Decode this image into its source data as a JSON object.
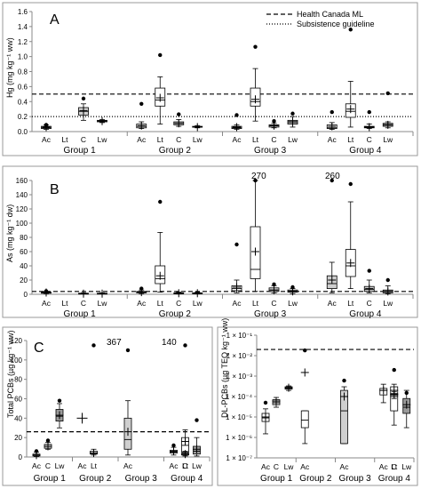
{
  "chart_data": [
    {
      "panel": "A",
      "type": "boxplot",
      "ylabel": "Hg (mg kg⁻¹ ww)",
      "ylim": [
        0,
        1.6
      ],
      "yticks": [
        "0.0",
        "0.2",
        "0.4",
        "0.6",
        "0.8",
        "1.0",
        "1.2",
        "1.4",
        "1.6"
      ],
      "legend": [
        {
          "name": "Health Canada ML",
          "style": "dashed"
        },
        {
          "name": "Subsistence guideline",
          "style": "dotted"
        }
      ],
      "legend_position": "top-right",
      "reference_lines": [
        {
          "name": "Health Canada ML",
          "y": 0.5,
          "style": "dashed"
        },
        {
          "name": "Subsistence guideline",
          "y": 0.2,
          "style": "dotted"
        }
      ],
      "group_labels": [
        "Group 1",
        "Group 2",
        "Group 3",
        "Group 4"
      ],
      "boxes": [
        {
          "group": 0,
          "cat": "Ac",
          "min": 0.03,
          "q1": 0.04,
          "median": 0.05,
          "q3": 0.07,
          "max": 0.09,
          "mean": 0.06,
          "outliers": [
            0.09
          ],
          "fill": "#ffffff"
        },
        {
          "group": 0,
          "cat": "Lt",
          "empty": true
        },
        {
          "group": 0,
          "cat": "C",
          "min": 0.15,
          "q1": 0.22,
          "median": 0.27,
          "q3": 0.32,
          "max": 0.37,
          "mean": 0.28,
          "outliers": [
            0.44
          ],
          "fill": "#cfcfcf"
        },
        {
          "group": 0,
          "cat": "Lw",
          "min": 0.12,
          "q1": 0.13,
          "median": 0.14,
          "q3": 0.15,
          "max": 0.16,
          "mean": 0.14,
          "outliers": [],
          "fill": "#9a9a9a"
        },
        {
          "group": 1,
          "cat": "Ac",
          "min": 0.04,
          "q1": 0.05,
          "median": 0.07,
          "q3": 0.1,
          "max": 0.13,
          "mean": 0.08,
          "outliers": [
            0.37
          ],
          "fill": "#ffffff"
        },
        {
          "group": 1,
          "cat": "Lt",
          "min": 0.1,
          "q1": 0.34,
          "median": 0.42,
          "q3": 0.58,
          "max": 0.73,
          "mean": 0.45,
          "outliers": [
            1.02
          ],
          "fill": "#ffffff"
        },
        {
          "group": 1,
          "cat": "C",
          "min": 0.07,
          "q1": 0.09,
          "median": 0.11,
          "q3": 0.13,
          "max": 0.16,
          "mean": 0.11,
          "outliers": [
            0.23
          ],
          "fill": "#cfcfcf"
        },
        {
          "group": 1,
          "cat": "Lw",
          "min": 0.05,
          "q1": 0.06,
          "median": 0.06,
          "q3": 0.07,
          "max": 0.08,
          "mean": 0.06,
          "outliers": [],
          "fill": "#9a9a9a"
        },
        {
          "group": 2,
          "cat": "Ac",
          "min": 0.03,
          "q1": 0.04,
          "median": 0.05,
          "q3": 0.07,
          "max": 0.09,
          "mean": 0.06,
          "outliers": [
            0.22
          ],
          "fill": "#ffffff"
        },
        {
          "group": 2,
          "cat": "Lt",
          "min": 0.14,
          "q1": 0.34,
          "median": 0.4,
          "q3": 0.58,
          "max": 0.84,
          "mean": 0.43,
          "outliers": [
            1.13
          ],
          "fill": "#ffffff"
        },
        {
          "group": 2,
          "cat": "C",
          "min": 0.05,
          "q1": 0.06,
          "median": 0.08,
          "q3": 0.09,
          "max": 0.11,
          "mean": 0.08,
          "outliers": [
            0.14
          ],
          "fill": "#cfcfcf"
        },
        {
          "group": 2,
          "cat": "Lw",
          "min": 0.06,
          "q1": 0.1,
          "median": 0.13,
          "q3": 0.15,
          "max": 0.2,
          "mean": 0.13,
          "outliers": [
            0.24
          ],
          "fill": "#9a9a9a"
        },
        {
          "group": 3,
          "cat": "Ac",
          "min": 0.03,
          "q1": 0.04,
          "median": 0.05,
          "q3": 0.09,
          "max": 0.12,
          "mean": 0.07,
          "outliers": [
            0.26
          ],
          "fill": "#ffffff"
        },
        {
          "group": 3,
          "cat": "Lt",
          "min": 0.06,
          "q1": 0.19,
          "median": 0.27,
          "q3": 0.37,
          "max": 0.67,
          "mean": 0.3,
          "outliers": [
            1.36
          ],
          "fill": "#ffffff"
        },
        {
          "group": 3,
          "cat": "C",
          "min": 0.04,
          "q1": 0.05,
          "median": 0.06,
          "q3": 0.07,
          "max": 0.1,
          "mean": 0.06,
          "outliers": [
            0.26
          ],
          "fill": "#cfcfcf"
        },
        {
          "group": 3,
          "cat": "Lw",
          "min": 0.05,
          "q1": 0.07,
          "median": 0.09,
          "q3": 0.11,
          "max": 0.13,
          "mean": 0.09,
          "outliers": [
            0.51
          ],
          "fill": "#9a9a9a"
        }
      ]
    },
    {
      "panel": "B",
      "type": "boxplot",
      "ylabel": "As (mg kg⁻¹ dw)",
      "ylim": [
        0,
        160
      ],
      "yticks": [
        "0",
        "20",
        "40",
        "60",
        "80",
        "100",
        "120",
        "140",
        "160"
      ],
      "reference_lines": [
        {
          "y": 4,
          "style": "dashed"
        }
      ],
      "group_labels": [
        "Group 1",
        "Group 2",
        "Group 3",
        "Group 4"
      ],
      "annotations": [
        "270",
        "260"
      ],
      "boxes": [
        {
          "group": 0,
          "cat": "Ac",
          "min": 1,
          "q1": 1.5,
          "median": 2,
          "q3": 3,
          "max": 4,
          "mean": 2.5,
          "outliers": [
            4.5
          ],
          "fill": "#ffffff"
        },
        {
          "group": 0,
          "cat": "Lt",
          "empty": true
        },
        {
          "group": 0,
          "cat": "C",
          "min": 0.5,
          "q1": 0.8,
          "median": 1,
          "q3": 1.5,
          "max": 2,
          "mean": 1,
          "outliers": [],
          "fill": "#cfcfcf"
        },
        {
          "group": 0,
          "cat": "Lw",
          "min": 0.5,
          "q1": 0.8,
          "median": 1,
          "q3": 1.5,
          "max": 2,
          "mean": 1,
          "outliers": [],
          "fill": "#9a9a9a"
        },
        {
          "group": 1,
          "cat": "Ac",
          "min": 1,
          "q1": 2,
          "median": 3,
          "q3": 4,
          "max": 6,
          "mean": 3,
          "outliers": [
            8
          ],
          "fill": "#ffffff"
        },
        {
          "group": 1,
          "cat": "Lt",
          "min": 3,
          "q1": 15,
          "median": 22,
          "q3": 40,
          "max": 87,
          "mean": 26,
          "outliers": [
            130
          ],
          "fill": "#ffffff"
        },
        {
          "group": 1,
          "cat": "C",
          "min": 0.5,
          "q1": 1,
          "median": 1.5,
          "q3": 2,
          "max": 3,
          "mean": 1.5,
          "outliers": [],
          "fill": "#cfcfcf"
        },
        {
          "group": 1,
          "cat": "Lw",
          "min": 0.5,
          "q1": 1,
          "median": 1.5,
          "q3": 2,
          "max": 3,
          "mean": 1.5,
          "outliers": [],
          "fill": "#9a9a9a"
        },
        {
          "group": 2,
          "cat": "Ac",
          "min": 2,
          "q1": 5,
          "median": 8,
          "q3": 12,
          "max": 20,
          "mean": 10,
          "outliers": [
            70
          ],
          "fill": "#ffffff"
        },
        {
          "group": 2,
          "cat": "Lt",
          "min": 4,
          "q1": 22,
          "median": 35,
          "q3": 95,
          "max": 160,
          "mean": 60,
          "outliers": [
            165
          ],
          "fill": "#ffffff"
        },
        {
          "group": 2,
          "cat": "C",
          "min": 2,
          "q1": 4,
          "median": 6,
          "q3": 9,
          "max": 12,
          "mean": 6,
          "outliers": [
            14
          ],
          "fill": "#cfcfcf"
        },
        {
          "group": 2,
          "cat": "Lw",
          "min": 1,
          "q1": 3,
          "median": 4,
          "q3": 6,
          "max": 8,
          "mean": 4,
          "outliers": [
            10
          ],
          "fill": "#9a9a9a"
        },
        {
          "group": 3,
          "cat": "Ac",
          "min": 2,
          "q1": 8,
          "median": 15,
          "q3": 26,
          "max": 45,
          "mean": 20,
          "outliers": [
            162
          ],
          "fill": "#cfcfcf"
        },
        {
          "group": 3,
          "cat": "Lt",
          "min": 8,
          "q1": 25,
          "median": 40,
          "q3": 63,
          "max": 130,
          "mean": 44,
          "outliers": [
            155
          ],
          "fill": "#ffffff"
        },
        {
          "group": 3,
          "cat": "C",
          "min": 2,
          "q1": 4,
          "median": 7,
          "q3": 11,
          "max": 20,
          "mean": 8,
          "outliers": [
            33
          ],
          "fill": "#cfcfcf"
        },
        {
          "group": 3,
          "cat": "Lw",
          "min": 1,
          "q1": 2,
          "median": 4,
          "q3": 6,
          "max": 12,
          "mean": 4,
          "outliers": [
            20
          ],
          "fill": "#9a9a9a"
        }
      ]
    },
    {
      "panel": "C",
      "type": "boxplot",
      "ylabel": "Total PCBs (µg kg⁻¹ ww)",
      "ylim": [
        0,
        120
      ],
      "yticks": [
        "0",
        "20",
        "40",
        "60",
        "80",
        "100",
        "120"
      ],
      "reference_lines": [
        {
          "y": 26,
          "style": "dashed"
        }
      ],
      "group_labels": [
        "Group 1",
        "Group 2",
        "Group 3",
        "Group 4"
      ],
      "annotations": [
        "367",
        "140"
      ],
      "boxes": [
        {
          "group": 0,
          "cat": "Ac",
          "min": 0.5,
          "q1": 1,
          "median": 2,
          "q3": 3,
          "max": 5,
          "mean": 2,
          "outliers": [
            6
          ],
          "fill": "#ffffff"
        },
        {
          "group": 0,
          "cat": "C",
          "min": 8,
          "q1": 9,
          "median": 11,
          "q3": 13,
          "max": 15,
          "mean": 11,
          "outliers": [
            17
          ],
          "fill": "#cfcfcf"
        },
        {
          "group": 0,
          "cat": "Lw",
          "min": 30,
          "q1": 37,
          "median": 42,
          "q3": 49,
          "max": 55,
          "mean": 43,
          "outliers": [
            58
          ],
          "fill": "#9a9a9a"
        },
        {
          "group": 1,
          "cat": "Ac",
          "mean": 40,
          "outliers": [],
          "fill": "#ffffff",
          "mean_only": true
        },
        {
          "group": 1,
          "cat": "Lt",
          "min": 2,
          "q1": 3,
          "median": 4,
          "q3": 6,
          "max": 8,
          "mean": 4,
          "outliers": [
            115
          ],
          "fill": "#cfcfcf"
        },
        {
          "group": 2,
          "cat": "Ac",
          "min": 2,
          "q1": 8,
          "median": 18,
          "q3": 40,
          "max": 58,
          "mean": 26,
          "outliers": [
            110
          ],
          "fill": "#cfcfcf"
        },
        {
          "group": 3,
          "cat": "Ac",
          "min": 2,
          "q1": 4,
          "median": 5,
          "q3": 7,
          "max": 10,
          "mean": 6,
          "outliers": [
            12
          ],
          "fill": "#ffffff"
        },
        {
          "group": 3,
          "cat": "Lt",
          "min": 2,
          "q1": 5,
          "median": 12,
          "q3": 20,
          "max": 28,
          "mean": 16,
          "outliers": [
            115
          ],
          "fill": "#ffffff"
        },
        {
          "group": 3,
          "cat": "C",
          "min": 1,
          "q1": 2,
          "median": 3,
          "q3": 4,
          "max": 6,
          "mean": 3,
          "outliers": [],
          "fill": "#cfcfcf"
        },
        {
          "group": 3,
          "cat": "Lw",
          "min": 1,
          "q1": 3,
          "median": 6,
          "q3": 11,
          "max": 20,
          "mean": 8,
          "outliers": [
            38
          ],
          "fill": "#9a9a9a"
        }
      ]
    },
    {
      "panel": "D",
      "type": "boxplot",
      "scale": "log",
      "ylabel": "DL-PCBs (µg TEQ kg⁻¹ ww)",
      "ylim_exp": [
        -7,
        -1
      ],
      "yticks": [
        "1 × 10⁻⁷",
        "1 × 10⁻⁶",
        "1 × 10⁻⁵",
        "1 × 10⁻⁴",
        "1 × 10⁻³",
        "1 × 10⁻²",
        "1 × 10⁻¹"
      ],
      "reference_lines": [
        {
          "y": 0.02,
          "style": "dashed"
        }
      ],
      "group_labels": [
        "Group 1",
        "Group 2",
        "Group 3",
        "Group 4"
      ],
      "boxes": [
        {
          "group": 0,
          "cat": "Ac",
          "min": 1.5e-06,
          "q1": 6e-06,
          "median": 9e-06,
          "q3": 1.5e-05,
          "max": 2.5e-05,
          "mean": 1e-05,
          "outliers": [
            5e-05
          ],
          "fill": "#ffffff"
        },
        {
          "group": 0,
          "cat": "C",
          "min": 3e-05,
          "q1": 4e-05,
          "median": 5e-05,
          "q3": 7e-05,
          "max": 9e-05,
          "mean": 6e-05,
          "outliers": [],
          "fill": "#cfcfcf"
        },
        {
          "group": 0,
          "cat": "Lw",
          "min": 0.0002,
          "q1": 0.00023,
          "median": 0.00026,
          "q3": 0.0003,
          "max": 0.00033,
          "mean": 0.00027,
          "outliers": [],
          "fill": "#9a9a9a"
        },
        {
          "group": 1,
          "cat": "Ac",
          "min": 5e-07,
          "q1": 3e-06,
          "median": 7e-06,
          "q3": 2e-05,
          "max": 2e-05,
          "mean": 0.0015,
          "outliers": [
            0.018
          ],
          "fill": "#ffffff"
        },
        {
          "group": 2,
          "cat": "Ac",
          "min": 5e-07,
          "q1": 5e-07,
          "median": 2e-05,
          "q3": 0.0002,
          "max": 0.0003,
          "mean": 0.0001,
          "outliers": [
            0.0006
          ],
          "fill": "#cfcfcf"
        },
        {
          "group": 3,
          "cat": "Ac",
          "min": 5e-05,
          "q1": 0.00012,
          "median": 0.0002,
          "q3": 0.00025,
          "max": 0.0004,
          "mean": 0.0002,
          "outliers": [],
          "fill": "#ffffff"
        },
        {
          "group": 3,
          "cat": "Lt",
          "min": 4e-06,
          "q1": 2e-05,
          "median": 0.0001,
          "q3": 0.0003,
          "max": 0.0004,
          "mean": 0.0002,
          "outliers": [
            0.002
          ],
          "fill": "#ffffff"
        },
        {
          "group": 3,
          "cat": "C",
          "min": 8e-05,
          "q1": 0.0001,
          "median": 0.00012,
          "q3": 0.00014,
          "max": 0.00017,
          "mean": 0.00013,
          "outliers": [],
          "fill": "#cfcfcf"
        },
        {
          "group": 3,
          "cat": "Lw",
          "min": 3e-06,
          "q1": 1.5e-05,
          "median": 3e-05,
          "q3": 8e-05,
          "max": 0.0002,
          "mean": 4e-05,
          "outliers": [
            0.00015
          ],
          "fill": "#9a9a9a"
        }
      ]
    }
  ],
  "categories": [
    "Ac",
    "Lt",
    "C",
    "Lw"
  ]
}
